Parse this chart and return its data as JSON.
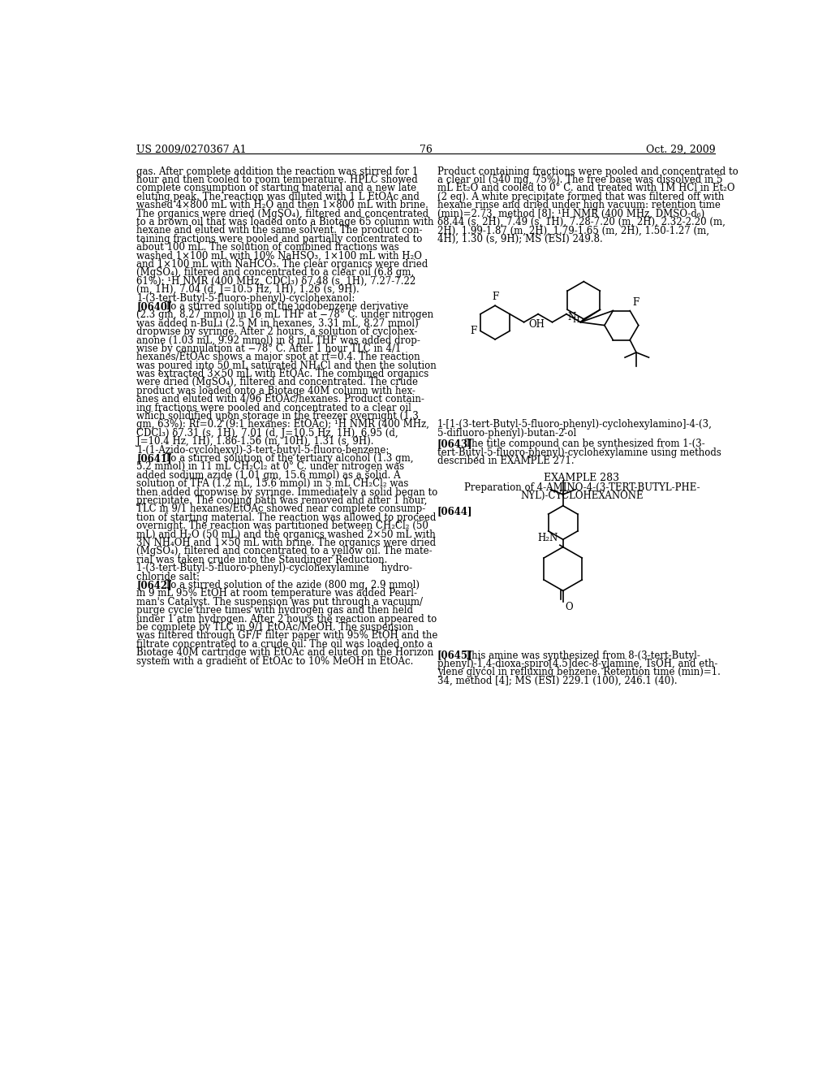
{
  "background_color": "#ffffff",
  "header_left": "US 2009/0270367 A1",
  "header_right": "Oct. 29, 2009",
  "page_number": "76",
  "left_column_text": [
    "gas. After complete addition the reaction was stirred for 1",
    "hour and then cooled to room temperature. HPLC showed",
    "complete consumption of starting material and a new late",
    "eluting peak. The reaction was diluted with 1 L EtOAc and",
    "washed 4×800 mL with H₂O and then 1×800 mL with brine.",
    "The organics were dried (MgSO₄), filtered and concentrated",
    "to a brown oil that was loaded onto a Biotage 65 column with",
    "hexane and eluted with the same solvent. The product con-",
    "taining fractions were pooled and partially concentrated to",
    "about 100 mL. The solution of combined fractions was",
    "washed 1×100 mL with 10% NaHSO₃, 1×100 mL with H₂O",
    "and 1×100 mL with NaHCO₃. The clear organics were dried",
    "(MgSO₄), filtered and concentrated to a clear oil (6.8 gm,",
    "61%): ¹H NMR (400 MHz, CDCl₃) δ7.48 (s, 1H), 7.27-7.22",
    "(m, 1H), 7.04 (d, J=10.5 Hz, 1H), 1.26 (s, 9H).",
    "1-(3-tert-Butyl-5-fluoro-phenyl)-cyclohexanol:",
    "[0640]   To a stirred solution of the iodobenzene derivative",
    "(2.3 gm, 8.27 mmol) in 16 mL THF at −78° C. under nitrogen",
    "was added n-BuLi (2.5 M in hexanes, 3.31 mL, 8.27 mmol)",
    "dropwise by syringe. After 2 hours, a solution of cyclohex-",
    "anone (1.03 mL, 9.92 mmol) in 8 mL THF was added drop-",
    "wise by cannulation at −78° C. After 1 hour TLC in 4/1",
    "hexanes/EtOAc shows a major spot at rf=0.4. The reaction",
    "was poured into 50 mL saturated NH₄Cl and then the solution",
    "was extracted 3×50 mL with EtOAc. The combined organics",
    "were dried (MgSO₄), filtered and concentrated. The crude",
    "product was loaded onto a Biotage 40M column with hex-",
    "anes and eluted with 4/96 EtOAc/hexanes. Product contain-",
    "ing fractions were pooled and concentrated to a clear oil",
    "which solidified upon storage in the freezer overnight (1.3",
    "gm, 63%): Rf=0.2 (9:1 hexanes: EtOAc); ¹H NMR (400 MHz,",
    "CDCl₃) δ7.31 (s, 1H), 7.01 (d, J=10.5 Hz, 1H), 6.95 (d,",
    "J=10.4 Hz, 1H), 1.86-1.56 (m, 10H), 1.31 (s, 9H).",
    "1-(1-Azido-cyclohexyl)-3-tert-butyl-5-fluoro-benzene:",
    "[0641]   To a stirred solution of the tertiary alcohol (1.3 gm,",
    "5.2 mmol) in 11 mL CH₂Cl₂ at 0° C. under nitrogen was",
    "added sodium azide (1.01 gm, 15.6 mmol) as a solid. A",
    "solution of TFA (1.2 mL, 15.6 mmol) in 5 mL CH₂Cl₂ was",
    "then added dropwise by syringe. Immediately a solid began to",
    "precipitate. The cooling bath was removed and after 1 hour,",
    "TLC in 9/1 hexanes/EtOAc showed near complete consump-",
    "tion of starting material. The reaction was allowed to proceed",
    "overnight. The reaction was partitioned between CH₂Cl₂ (50",
    "mL) and H₂O (50 mL) and the organics washed 2×50 mL with",
    "3N NH₄OH and 1×50 mL with brine. The organics were dried",
    "(MgSO₄), filtered and concentrated to a yellow oil. The mate-",
    "rial was taken crude into the Staudinger Reduction.",
    "1-(3-tert-Butyl-5-fluoro-phenyl)-cyclohexylamine    hydro-",
    "chloride salt:",
    "[0642]   To a stirred solution of the azide (800 mg, 2.9 mmol)",
    "in 9 mL 95% EtOH at room temperature was added Pearl-",
    "man's Catalyst. The suspension was put through a vacuum/",
    "purge cycle three times with hydrogen gas and then held",
    "under 1 atm hydrogen. After 2 hours the reaction appeared to",
    "be complete by TLC in 9/1 EtOAc/MeOH. The suspension",
    "was filtered through GF/F filter paper with 95% EtOH and the",
    "filtrate concentrated to a crude oil. The oil was loaded onto a",
    "Biotage 40M cartridge with EtOAc and eluted on the Horizon",
    "system with a gradient of EtOAc to 10% MeOH in EtOAc."
  ],
  "right_column_text_top": [
    "Product containing fractions were pooled and concentrated to",
    "a clear oil (540 mg, 75%). The free base was dissolved in 5",
    "mL Et₂O and cooled to 0° C. and treated with 1M HCl in Et₂O",
    "(2 eq). A white precipitate formed that was filtered off with",
    "hexane rinse and dried under high vacuum: retention time",
    "(min)=2.73, method [8]; ¹H NMR (400 MHz, DMSO-d₆)",
    "δ8.44 (s, 2H), 7.49 (s, 1H), 7.28-7.20 (m, 2H), 2.32-2.20 (m,",
    "2H), 1.99-1.87 (m, 2H), 1.79-1.65 (m, 2H), 1.50-1.27 (m,",
    "4H), 1.30 (s, 9H); MS (ESI) 249.8."
  ],
  "compound_label_1": "1-[1-(3-tert-Butyl-5-fluoro-phenyl)-cyclohexylamino]-4-(3,",
  "compound_label_1b": "5-difluoro-phenyl)-butan-2-ol",
  "para_0643_bold": "[0643]",
  "para_0643_rest": "   The title compound can be synthesized from 1-(3-",
  "para_0643b": "tert-Butyl-5-fluoro-phenyl)-cyclohexylamine using methods",
  "para_0643c": "described in EXAMPLE 271.",
  "example_283_header": "EXAMPLE 283",
  "example_283_prep": "Preparation of 4-AMINO-4-(3-TERT-BUTYL-PHE-",
  "example_283_prep2": "NYL)-CYCLOHEXANONE",
  "para_0644_bold": "[0644]",
  "right_column_bottom": [
    "[0645]   This amine was synthesized from 8-(3-tert-Butyl-",
    "phenyl)-1,4-dioxa-spiro[4.5]dec-8-ylamine, TsOH, and eth-",
    "ylene glycol in refluxing benzene. Retention time (min)=1.",
    "34, method [4]; MS (ESI) 229.1 (100), 246.1 (40)."
  ]
}
